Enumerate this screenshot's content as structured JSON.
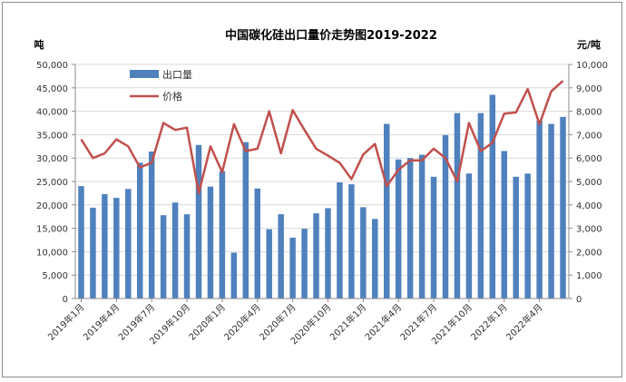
{
  "chart_data": {
    "type": "bar",
    "title": "中国碳化硅出口量价走势图2019-2022",
    "ylabel_left": "吨",
    "ylabel_right": "元/吨",
    "ylim_left": [
      0,
      50000
    ],
    "ylim_right": [
      0,
      10000
    ],
    "yticks_left": [
      "0",
      "5,000",
      "10,000",
      "15,000",
      "20,000",
      "25,000",
      "30,000",
      "35,000",
      "40,000",
      "45,000",
      "50,000"
    ],
    "yticks_right": [
      "0",
      "1,000",
      "2,000",
      "3,000",
      "4,000",
      "5,000",
      "6,000",
      "7,000",
      "8,000",
      "9,000",
      "10,000"
    ],
    "grid": true,
    "legend_position": "top-left",
    "x_tick_labels": [
      "2019年1月",
      "2019年4月",
      "2019年7月",
      "2019年10月",
      "2020年1月",
      "2020年4月",
      "2020年7月",
      "2020年10月",
      "2021年1月",
      "2021年4月",
      "2021年7月",
      "2021年10月",
      "2022年1月",
      "2022年4月"
    ],
    "x_tick_every": 3,
    "series": [
      {
        "name": "出口量",
        "kind": "bar",
        "axis": "left",
        "color": "#4F81BD",
        "values": [
          24000,
          19400,
          22300,
          21500,
          23400,
          29000,
          31400,
          17800,
          20500,
          18000,
          32800,
          23900,
          27200,
          9800,
          33400,
          23500,
          14800,
          18000,
          13000,
          14900,
          18200,
          19300,
          24800,
          24400,
          19500,
          17000,
          37300,
          29700,
          30000,
          30700,
          26000,
          34900,
          39600,
          26700,
          39600,
          43500,
          31500,
          26000,
          26700,
          38000,
          37300,
          38800
        ]
      },
      {
        "name": "价格",
        "kind": "line",
        "axis": "right",
        "color": "#C0504D",
        "values": [
          6800,
          6000,
          6200,
          6800,
          6500,
          5600,
          5800,
          7500,
          7200,
          7300,
          4500,
          6500,
          5400,
          7450,
          6300,
          6400,
          8000,
          6200,
          8050,
          7200,
          6400,
          6100,
          5800,
          5100,
          6150,
          6600,
          4800,
          5500,
          5900,
          5900,
          6400,
          6000,
          5000,
          7500,
          6300,
          6650,
          7900,
          7950,
          8950,
          7450,
          8850,
          9300
        ]
      }
    ]
  }
}
